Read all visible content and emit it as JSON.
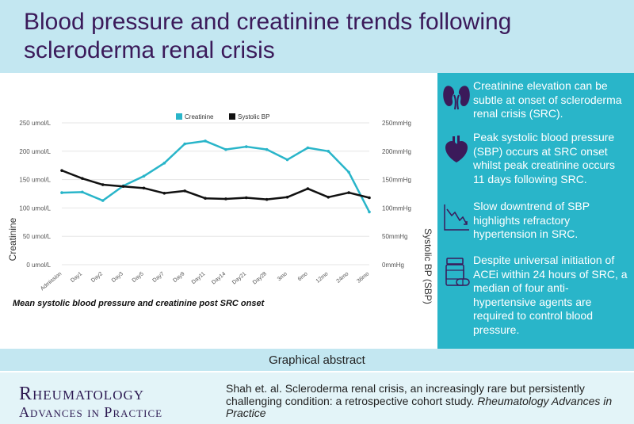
{
  "header": {
    "title": "Blood pressure and creatinine trends following scleroderma renal crisis"
  },
  "chart_data": {
    "type": "line",
    "categories": [
      "Admission",
      "Day1",
      "Day2",
      "Day3",
      "Day5",
      "Day7",
      "Day9",
      "Day11",
      "Day14",
      "Day21",
      "Day28",
      "3mo",
      "6mo",
      "12mo",
      "24mo",
      "36mo"
    ],
    "series": [
      {
        "name": "Creatinine",
        "axis": "left",
        "color": "#29b5c9",
        "values": [
          127,
          128,
          113,
          139,
          156,
          179,
          213,
          218,
          203,
          208,
          203,
          185,
          206,
          200,
          163,
          93
        ]
      },
      {
        "name": "Systolic BP",
        "axis": "right",
        "color": "#111111",
        "values": [
          166,
          152,
          141,
          138,
          135,
          126,
          130,
          117,
          116,
          118,
          115,
          119,
          134,
          119,
          127,
          118
        ]
      }
    ],
    "ylabel": "Creatinine",
    "y2label": "Systolic BP (SBP)",
    "ylim": [
      0,
      250
    ],
    "y2lim": [
      0,
      250
    ],
    "yticks": [
      "0 umol/L",
      "50 umol/L",
      "100 umol/L",
      "150 umol/L",
      "200 umol/L",
      "250 umol/L"
    ],
    "y2ticks": [
      "0mmHg",
      "50mmHg",
      "100mmHg",
      "150mmHg",
      "200mmHg",
      "250mmHg"
    ],
    "legend_position": "top",
    "caption": "Mean systolic blood pressure and creatinine post SRC onset"
  },
  "findings": [
    {
      "icon": "kidney-icon",
      "text": "Creatinine elevation can be subtle at onset of scleroderma renal crisis (SRC)."
    },
    {
      "icon": "heart-icon",
      "text": "Peak systolic blood pressure (SBP) occurs at SRC onset whilst peak creatinine occurs 11 days following SRC."
    },
    {
      "icon": "downtrend-icon",
      "text": "Slow downtrend of SBP highlights refractory hypertension in SRC."
    },
    {
      "icon": "pill-bottle-icon",
      "text": "Despite universal initiation of ACEi within 24 hours of SRC, a median of four anti-hypertensive agents are required to control blood pressure."
    }
  ],
  "graphical_abstract_label": "Graphical abstract",
  "journal_logo": {
    "line1": "Rheumatology",
    "line2": "Advances in Practice"
  },
  "citation": {
    "text": "Shah et. al. Scleroderma renal crisis, an increasingly rare but persistently challenging condition: a retrospective cohort study.",
    "journal": "Rheumatology Advances in Practice"
  },
  "colors": {
    "header_bg": "#c3e7f1",
    "panel_bg": "#29b5c9",
    "title": "#3b1a5a",
    "logo": "#2d1a52",
    "icon": "#3b1a5a"
  }
}
